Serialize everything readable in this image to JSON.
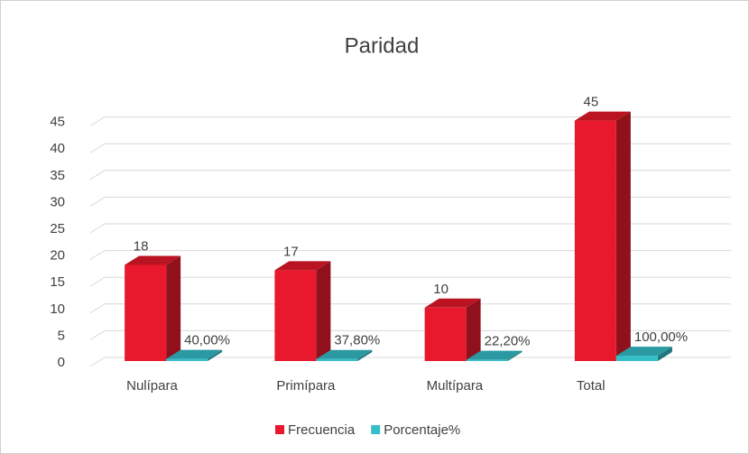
{
  "chart_data": {
    "type": "bar3d",
    "title": "Paridad",
    "categories": [
      "Nulípara",
      "Primípara",
      "Multípara",
      "Total"
    ],
    "series": [
      {
        "name": "Frecuencia",
        "color": "#e8192c",
        "values": [
          18,
          17,
          10,
          45
        ]
      },
      {
        "name": "Porcentaje%",
        "color": "#35bfc9",
        "values": [
          0.4,
          0.378,
          0.222,
          1
        ],
        "value_labels": [
          "40,00%",
          "37,80%",
          "22,20%",
          "100,00%"
        ]
      }
    ],
    "ylim": [
      0,
      50
    ],
    "yticks": [
      0,
      5,
      10,
      15,
      20,
      25,
      30,
      35,
      40,
      45
    ],
    "grid": true,
    "legend": "bottom"
  }
}
